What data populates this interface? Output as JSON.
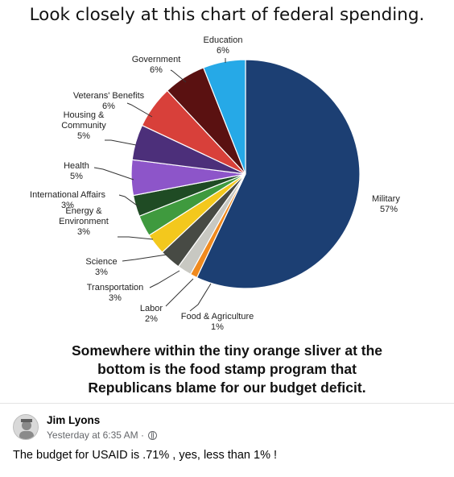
{
  "meme": {
    "title": "Look closely at this chart of federal spending.",
    "caption_lines": [
      "Somewhere within the tiny orange sliver at the",
      "bottom is the food stamp program that",
      "Republicans blame for our budget deficit."
    ]
  },
  "chart_data": {
    "type": "pie",
    "title": "",
    "slices": [
      {
        "label": "Military",
        "value": 57,
        "value_label": "57%",
        "color": "#1c3f73"
      },
      {
        "label": "Food & Agriculture",
        "value": 1,
        "value_label": "1%",
        "color": "#f08a1e"
      },
      {
        "label": "Labor",
        "value": 2,
        "value_label": "2%",
        "color": "#c8c8c2"
      },
      {
        "label": "Transportation",
        "value": 3,
        "value_label": "3%",
        "color": "#474a44"
      },
      {
        "label": "Science",
        "value": 3,
        "value_label": "3%",
        "color": "#f3c81d"
      },
      {
        "label": "Energy & Environment",
        "value": 3,
        "value_label": "3%",
        "color": "#3f9a3e"
      },
      {
        "label": "International Affairs",
        "value": 3,
        "value_label": "3%",
        "color": "#1f4b24"
      },
      {
        "label": "Health",
        "value": 5,
        "value_label": "5%",
        "color": "#8d55c9"
      },
      {
        "label": "Housing & Community",
        "value": 5,
        "value_label": "5%",
        "color": "#4c2f7a"
      },
      {
        "label": "Veterans' Benefits",
        "value": 6,
        "value_label": "6%",
        "color": "#d8403a"
      },
      {
        "label": "Government",
        "value": 6,
        "value_label": "6%",
        "color": "#5a1111"
      },
      {
        "label": "Education",
        "value": 6,
        "value_label": "6%",
        "color": "#26a9e7"
      }
    ]
  },
  "post": {
    "author": "Jim Lyons",
    "time": "Yesterday at 6:35 AM",
    "separator": "·",
    "privacy_icon": "globe-icon",
    "text": "The budget for USAID is .71% , yes, less than 1% !"
  }
}
